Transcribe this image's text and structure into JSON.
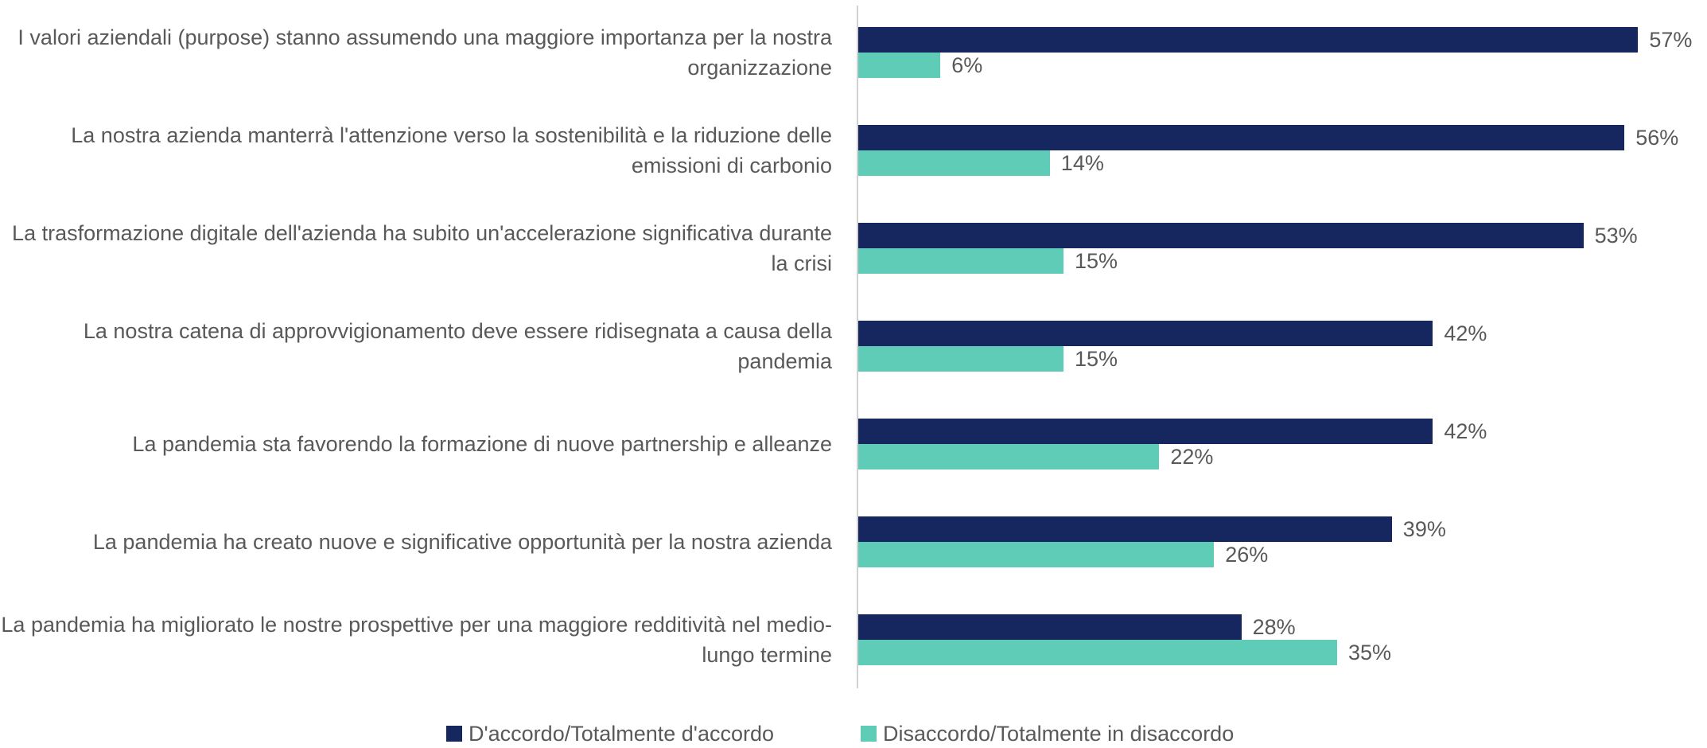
{
  "chart_data": {
    "type": "bar",
    "orientation": "horizontal",
    "categories": [
      "I valori aziendali (purpose) stanno assumendo una maggiore importanza per la nostra organizzazione",
      "La nostra azienda manterrà l'attenzione verso la sostenibilità e la riduzione delle emissioni di carbonio",
      "La trasformazione digitale dell'azienda ha subito un'accelerazione significativa durante la crisi",
      "La nostra catena di approvvigionamento deve essere ridisegnata a causa della pandemia",
      "La pandemia sta favorendo la formazione di nuove partnership e alleanze",
      "La pandemia ha creato nuove e significative opportunità per la nostra azienda",
      "La pandemia ha migliorato le nostre prospettive per una maggiore redditività nel medio-lungo termine"
    ],
    "series": [
      {
        "name": "D'accordo/Totalmente d'accordo",
        "color": "#16275f",
        "values": [
          57,
          56,
          53,
          42,
          42,
          39,
          28
        ],
        "value_labels": [
          "57%",
          "56%",
          "53%",
          "42%",
          "42%",
          "39%",
          "28%"
        ]
      },
      {
        "name": "Disaccordo/Totalmente in disaccordo",
        "color": "#5fccb8",
        "values": [
          6,
          14,
          15,
          15,
          22,
          26,
          35
        ],
        "value_labels": [
          "6%",
          "14%",
          "15%",
          "15%",
          "22%",
          "26%",
          "35%"
        ]
      }
    ],
    "legend": "bottom"
  }
}
